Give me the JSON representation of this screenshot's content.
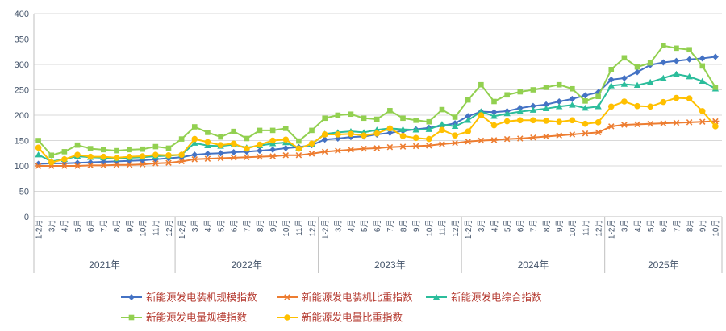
{
  "chart_data": {
    "type": "line",
    "title": "",
    "grid": true,
    "legend_position": "bottom",
    "y_axis": {
      "min": 0,
      "max": 400,
      "step": 50,
      "labels": [
        "0",
        "50",
        "100",
        "150",
        "200",
        "250",
        "300",
        "350",
        "400"
      ]
    },
    "year_groups": [
      {
        "label": "2021年",
        "months": [
          "1-2月",
          "3月",
          "4月",
          "5月",
          "6月",
          "7月",
          "8月",
          "9月",
          "10月",
          "11月",
          "12月"
        ]
      },
      {
        "label": "2022年",
        "months": [
          "1-2月",
          "3月",
          "4月",
          "5月",
          "6月",
          "7月",
          "8月",
          "9月",
          "10月",
          "11月",
          "12月"
        ]
      },
      {
        "label": "2023年",
        "months": [
          "1-2月",
          "3月",
          "4月",
          "5月",
          "6月",
          "7月",
          "8月",
          "9月",
          "10月",
          "11月",
          "12月"
        ]
      },
      {
        "label": "2024年",
        "months": [
          "1-2月",
          "3月",
          "4月",
          "5月",
          "6月",
          "7月",
          "8月",
          "9月",
          "10月",
          "11月",
          "12月"
        ]
      },
      {
        "label": "2025年",
        "months": [
          "1-2月",
          "3月",
          "4月",
          "5月",
          "6月",
          "7月",
          "8月",
          "9月",
          "10月"
        ]
      }
    ],
    "series": [
      {
        "name": "新能源发电装机规模指数",
        "marker": "diamond",
        "color": "#4472C4",
        "values": [
          104,
          105,
          105,
          106,
          107,
          108,
          109,
          110,
          111,
          113,
          115,
          117,
          122,
          124,
          125,
          127,
          128,
          130,
          132,
          135,
          137,
          141,
          152,
          154,
          157,
          158,
          162,
          165,
          169,
          172,
          175,
          179,
          184,
          198,
          207,
          206,
          208,
          214,
          218,
          221,
          227,
          232,
          239,
          245,
          270,
          273,
          285,
          299,
          304,
          307,
          310,
          312,
          315
        ]
      },
      {
        "name": "新能源发电装机比重指数",
        "marker": "star",
        "color": "#ED7D31",
        "values": [
          100,
          100,
          100,
          100,
          101,
          101,
          102,
          102,
          103,
          105,
          106,
          109,
          113,
          114,
          115,
          116,
          117,
          118,
          119,
          121,
          121,
          124,
          128,
          130,
          132,
          134,
          135,
          137,
          138,
          139,
          140,
          143,
          145,
          148,
          150,
          151,
          153,
          154,
          156,
          158,
          160,
          162,
          164,
          166,
          178,
          181,
          182,
          183,
          184,
          185,
          186,
          187,
          188
        ]
      },
      {
        "name": "新能源发电综合指数",
        "marker": "triangle",
        "color": "#2BBD9B",
        "values": [
          122,
          109,
          113,
          119,
          117,
          116,
          114,
          116,
          117,
          119,
          120,
          122,
          145,
          140,
          139,
          142,
          136,
          140,
          144,
          146,
          135,
          143,
          163,
          166,
          168,
          166,
          171,
          174,
          172,
          171,
          172,
          182,
          178,
          190,
          207,
          198,
          203,
          207,
          210,
          213,
          217,
          220,
          214,
          217,
          258,
          261,
          259,
          265,
          273,
          281,
          276,
          267,
          252
        ]
      },
      {
        "name": "新能源发电量规模指数",
        "marker": "square",
        "color": "#92D050",
        "values": [
          150,
          121,
          128,
          141,
          134,
          132,
          130,
          132,
          133,
          138,
          135,
          153,
          177,
          166,
          157,
          168,
          154,
          170,
          170,
          174,
          149,
          170,
          194,
          200,
          202,
          194,
          192,
          209,
          194,
          190,
          187,
          211,
          196,
          230,
          260,
          227,
          240,
          246,
          250,
          255,
          260,
          252,
          228,
          237,
          290,
          313,
          295,
          303,
          337,
          332,
          329,
          297,
          255
        ]
      },
      {
        "name": "新能源发电量比重指数",
        "marker": "circle",
        "color": "#FFC000",
        "values": [
          136,
          107,
          113,
          122,
          118,
          118,
          116,
          118,
          119,
          122,
          121,
          122,
          153,
          147,
          141,
          144,
          134,
          142,
          150,
          152,
          134,
          144,
          162,
          162,
          163,
          160,
          164,
          174,
          159,
          155,
          153,
          171,
          160,
          168,
          200,
          180,
          188,
          190,
          190,
          189,
          187,
          190,
          183,
          186,
          217,
          227,
          218,
          217,
          226,
          234,
          233,
          208,
          178
        ]
      }
    ]
  },
  "style": {
    "axis_text_color": "#44546A",
    "legend_text_color": "#B4392F",
    "gridline_color": "#D9D9D9",
    "axis_line_color": "#BFBFBF",
    "background": "#FFFFFF"
  }
}
